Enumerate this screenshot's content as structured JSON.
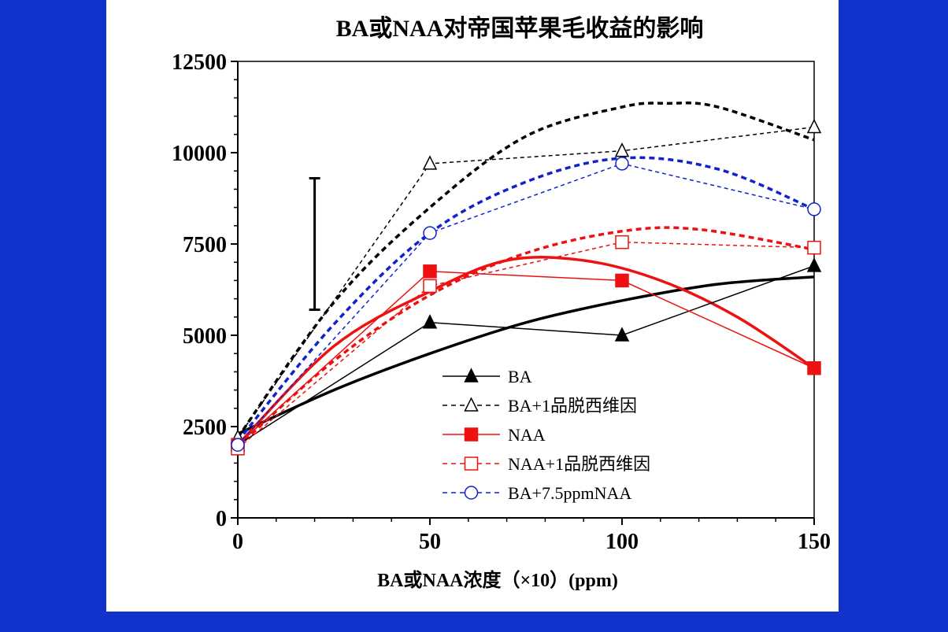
{
  "colors": {
    "background": "#1133cc",
    "panel": "#ffffff",
    "black": "#000000",
    "red": "#ee1111",
    "blue": "#1122cc"
  },
  "chart_data": {
    "type": "line",
    "title": "BA或NAA对帝国苹果毛收益的影响",
    "xlabel": "BA或NAA浓度（×10）(ppm)",
    "ylabel": "",
    "xlim": [
      0,
      150
    ],
    "ylim": [
      0,
      12500
    ],
    "x_ticks": [
      "0",
      "50",
      "100",
      "150"
    ],
    "y_ticks": [
      "0",
      "2500",
      "5000",
      "7500",
      "10000",
      "12500"
    ],
    "legend_position": "bottom-right",
    "error_bar": {
      "x": 20,
      "y_low": 5700,
      "y_high": 9300
    },
    "series": [
      {
        "name": "BA",
        "color": "#000000",
        "dash": "solid",
        "marker": "filled-triangle",
        "x": [
          0,
          50,
          100,
          150
        ],
        "y": [
          2000,
          5350,
          5000,
          6900
        ],
        "fit_x": [
          0,
          25,
          50,
          75,
          100,
          125,
          150
        ],
        "fit_y": [
          2300,
          3500,
          4500,
          5350,
          5950,
          6400,
          6600
        ]
      },
      {
        "name": "BA+1品脱西维因",
        "color": "#000000",
        "dash": "dashed",
        "marker": "open-triangle",
        "x": [
          0,
          50,
          100,
          150
        ],
        "y": [
          2200,
          9700,
          10050,
          10700
        ],
        "fit_x": [
          0,
          25,
          50,
          75,
          100,
          112,
          125,
          150
        ],
        "fit_y": [
          2200,
          5900,
          8500,
          10450,
          11250,
          11350,
          11250,
          10350
        ]
      },
      {
        "name": "NAA",
        "color": "#ee1111",
        "dash": "solid",
        "marker": "filled-square",
        "x": [
          0,
          50,
          100,
          150
        ],
        "y": [
          2000,
          6750,
          6500,
          4100
        ],
        "fit_x": [
          0,
          25,
          50,
          70,
          90,
          110,
          130,
          150
        ],
        "fit_y": [
          2000,
          4700,
          6200,
          7050,
          7050,
          6500,
          5500,
          4100
        ]
      },
      {
        "name": "NAA+1品脱西维因",
        "color": "#ee1111",
        "dash": "dashed",
        "marker": "open-square",
        "x": [
          0,
          50,
          100,
          150
        ],
        "y": [
          1900,
          6350,
          7550,
          7400
        ],
        "fit_x": [
          0,
          25,
          50,
          75,
          100,
          120,
          150
        ],
        "fit_y": [
          1950,
          4300,
          6100,
          7250,
          7850,
          7900,
          7350
        ]
      },
      {
        "name": "BA+7.5ppmNAA",
        "color": "#1122cc",
        "dash": "dashed",
        "marker": "open-circle",
        "x": [
          0,
          50,
          100,
          150
        ],
        "y": [
          2000,
          7800,
          9700,
          8450
        ],
        "fit_x": [
          0,
          25,
          50,
          75,
          100,
          125,
          150
        ],
        "fit_y": [
          2100,
          5300,
          7800,
          9200,
          9850,
          9550,
          8450
        ]
      }
    ]
  }
}
